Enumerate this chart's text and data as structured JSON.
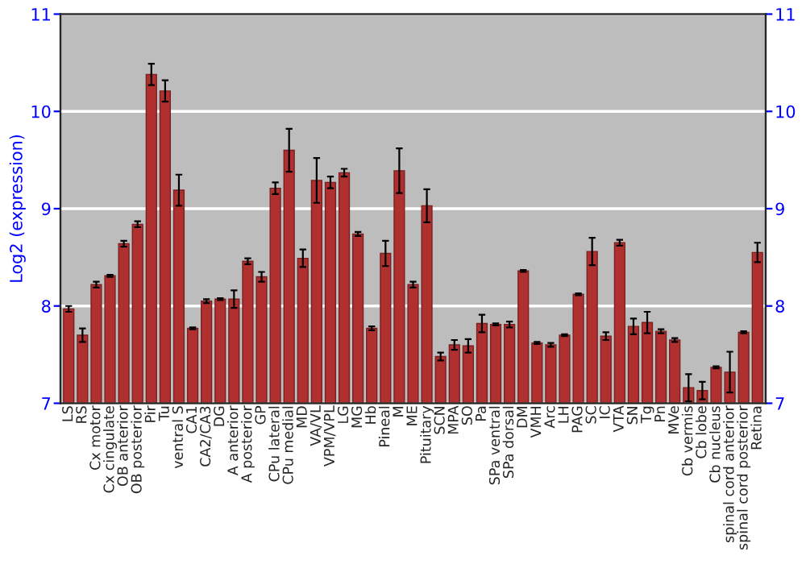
{
  "chart_data": {
    "type": "bar",
    "ylabel": "Log2 (expression)",
    "categories": [
      "LS",
      "RS",
      "Cx motor",
      "Cx cingulate",
      "OB anterior",
      "OB posterior",
      "Pir",
      "Tu",
      "ventral S",
      "CA1",
      "CA2/CA3",
      "DG",
      "A anterior",
      "A posterior",
      "GP",
      "CPu lateral",
      "CPu medial",
      "MD",
      "VA/VL",
      "VPM/VPL",
      "LG",
      "MG",
      "Hb",
      "Pineal",
      "M",
      "ME",
      "Pituitary",
      "SCN",
      "MPA",
      "SO",
      "Pa",
      "SPa ventral",
      "SPa dorsal",
      "DM",
      "VMH",
      "Arc",
      "LH",
      "PAG",
      "SC",
      "IC",
      "VTA",
      "SN",
      "Tg",
      "Pn",
      "MVe",
      "Cb vermis",
      "Cb lobe",
      "Cb nucleus",
      "spinal cord anterior",
      "spinal cord posterior",
      "Retina"
    ],
    "series": [
      {
        "color": "#b03030",
        "values": [
          7.97,
          7.7,
          8.22,
          8.31,
          8.64,
          8.84,
          10.38,
          10.21,
          9.19,
          7.77,
          8.05,
          8.07,
          8.07,
          8.46,
          8.3,
          9.21,
          9.6,
          8.49,
          9.29,
          9.27,
          9.37,
          8.74,
          7.77,
          8.54,
          9.39,
          8.22,
          9.03,
          7.48,
          7.6,
          7.59,
          7.82,
          7.81,
          7.81,
          8.36,
          7.62,
          7.6,
          7.7,
          8.12,
          8.56,
          7.69,
          8.65,
          7.79,
          7.83,
          7.74,
          7.65,
          7.16,
          7.13,
          7.37,
          7.32,
          7.73,
          8.55
        ],
        "errors": [
          0.03,
          0.07,
          0.03,
          0.01,
          0.03,
          0.03,
          0.11,
          0.11,
          0.16,
          0.01,
          0.02,
          0.01,
          0.09,
          0.03,
          0.05,
          0.06,
          0.22,
          0.09,
          0.23,
          0.06,
          0.04,
          0.02,
          0.02,
          0.13,
          0.23,
          0.03,
          0.17,
          0.04,
          0.05,
          0.07,
          0.09,
          0.01,
          0.03,
          0.01,
          0.01,
          0.02,
          0.01,
          0.01,
          0.14,
          0.04,
          0.03,
          0.08,
          0.11,
          0.02,
          0.02,
          0.14,
          0.09,
          0.01,
          0.21,
          0.01,
          0.1
        ]
      }
    ],
    "ylim": [
      7,
      11
    ],
    "yticks": [
      7,
      8,
      9,
      10,
      11
    ],
    "y2lim": [
      7,
      11
    ],
    "y2ticks": [
      7,
      8,
      9,
      10,
      11
    ],
    "grid": "y"
  }
}
